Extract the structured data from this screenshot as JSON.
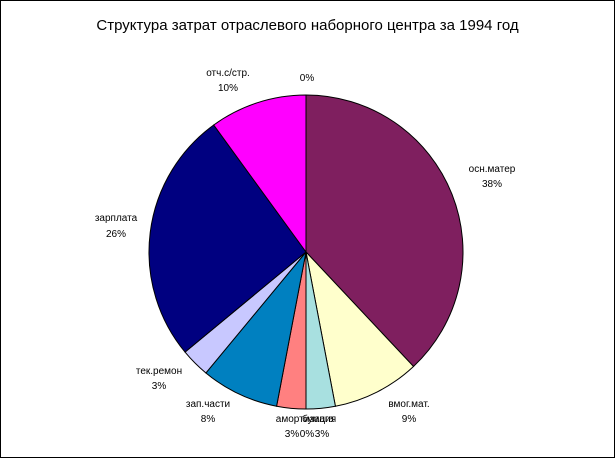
{
  "chart_data": {
    "type": "pie",
    "title": "Структура затрат отраслевого наборного центра за 1994 год",
    "slices": [
      {
        "name": "осн.матер",
        "value": 38,
        "label": "38%",
        "color": "#7F1F5F"
      },
      {
        "name": "вмог.мат.",
        "value": 9,
        "label": "9%",
        "color": "#FFFFCC"
      },
      {
        "name": "бумага",
        "value": 3,
        "label": "3%",
        "color": "#A8E0E0"
      },
      {
        "name": "амортизация",
        "value": 0,
        "label": "0%",
        "color": "#FFFFFF"
      },
      {
        "name": "",
        "value": 3,
        "label": "3%",
        "color": "#FF8080"
      },
      {
        "name": "зап.части",
        "value": 8,
        "label": "8%",
        "color": "#0080C0"
      },
      {
        "name": "тек.ремон",
        "value": 3,
        "label": "3%",
        "color": "#C8C8FF"
      },
      {
        "name": "зарплата",
        "value": 26,
        "label": "26%",
        "color": "#000080"
      },
      {
        "name": "отч.с/стр.",
        "value": 10,
        "label": "10%",
        "color": "#FF00FF"
      },
      {
        "name": "",
        "value": 0,
        "label": "0%",
        "color": "#FFFFFF"
      }
    ]
  }
}
